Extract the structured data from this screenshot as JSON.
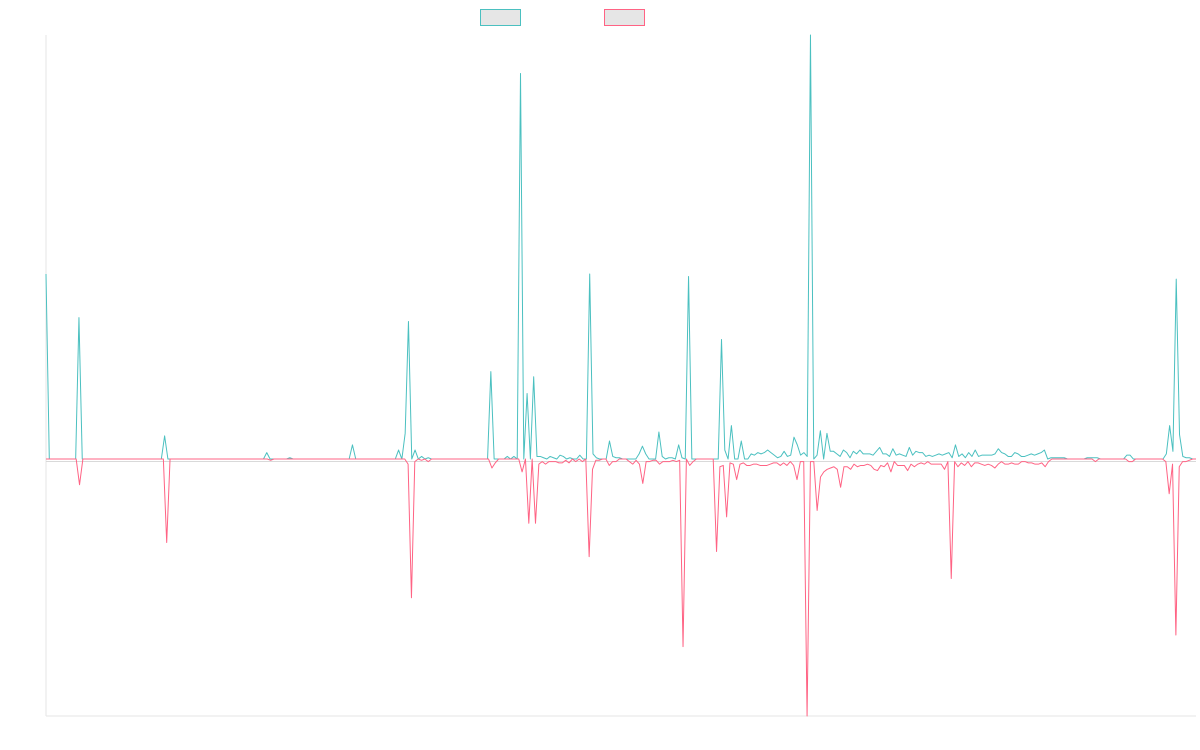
{
  "chart_data": {
    "type": "line",
    "title": "",
    "xlabel": "",
    "ylabel": "",
    "grid": false,
    "legend_position": "top-center",
    "ylim": [
      -100,
      165
    ],
    "series": [
      {
        "name": "",
        "color": "#4bc0c0",
        "values": [
          72,
          0,
          0,
          0,
          0,
          0,
          0,
          0,
          0,
          0,
          55,
          0,
          0,
          0,
          0,
          0,
          0,
          0,
          0,
          0,
          0,
          0,
          0,
          0,
          0,
          0,
          0,
          0,
          0,
          0,
          0,
          0,
          0,
          0,
          0,
          0,
          9,
          0,
          0,
          0,
          0,
          0,
          0,
          0,
          0,
          0,
          0,
          0,
          0,
          0,
          0,
          0,
          0,
          0,
          0,
          0,
          0,
          0,
          0,
          0,
          0,
          0,
          0,
          0,
          0,
          0,
          0,
          2.5,
          0,
          0,
          0,
          0,
          0,
          0,
          0.5,
          0,
          0,
          0,
          0,
          0,
          0,
          0,
          0,
          0,
          0,
          0,
          0,
          0,
          0,
          0,
          0,
          0,
          0,
          5.5,
          0,
          0,
          0,
          0,
          0,
          0,
          0,
          0,
          0,
          0,
          0,
          0,
          0,
          3.5,
          0,
          10,
          53.5,
          0,
          3.5,
          0,
          1,
          0,
          0.5,
          0,
          0,
          0,
          0,
          0,
          0,
          0,
          0,
          0,
          0,
          0,
          0,
          0,
          0,
          0,
          0,
          0,
          0,
          34,
          0,
          0,
          0,
          0,
          1,
          0,
          1,
          0,
          150,
          0,
          25.5,
          0,
          32,
          1,
          1,
          0.5,
          0,
          1,
          0.5,
          0,
          1.5,
          1,
          0,
          0.5,
          0,
          0,
          1.5,
          0,
          0,
          72,
          2,
          0.5,
          0,
          0,
          0,
          7,
          1,
          0.5,
          0.5,
          0,
          0,
          0,
          0,
          0,
          2,
          5,
          2,
          0,
          0,
          0,
          10.5,
          1,
          0,
          0.5,
          0.5,
          0,
          5.5,
          0.5,
          0,
          71,
          0,
          0,
          0,
          0,
          0,
          0,
          0,
          0,
          0,
          46.5,
          3.5,
          0,
          13,
          0,
          0,
          7,
          0,
          0,
          2,
          1.5,
          2.5,
          2,
          2.5,
          3.5,
          2.5,
          1.5,
          0.5,
          1,
          3,
          1,
          1.5,
          8.5,
          5.5,
          1.5,
          2.5,
          1,
          165,
          0,
          1.5,
          11,
          0,
          10,
          3,
          3,
          2,
          1,
          3.5,
          2.5,
          0.5,
          3,
          2,
          3.5,
          2,
          2,
          2,
          1.5,
          3,
          4.5,
          2,
          2,
          1,
          4,
          1.5,
          2,
          1.5,
          1,
          4.5,
          1.5,
          3,
          2.5,
          2.5,
          1,
          1.5,
          1,
          1.5,
          2,
          1.5,
          2,
          2.5,
          0.5,
          5.5,
          1,
          2,
          0.5,
          2.5,
          1,
          3.5,
          1,
          1.5,
          1.5,
          1.5,
          1.5,
          2,
          4,
          2.5,
          2,
          1,
          1,
          2.5,
          2,
          1,
          1,
          1.5,
          2,
          1.5,
          2,
          2.5,
          3.5,
          0,
          0.5,
          0.5,
          0.5,
          0.5,
          0.5,
          0,
          0,
          0,
          0,
          0,
          0,
          0.5,
          0.5,
          0.5,
          0.5,
          0,
          0,
          0,
          0,
          0,
          0,
          0,
          0,
          1.5,
          1.5,
          0,
          0,
          0,
          0,
          0,
          0,
          0,
          0,
          0,
          0,
          2,
          13,
          3,
          70,
          9.5,
          1,
          0.5,
          0.5,
          0,
          0
        ]
      },
      {
        "name": "",
        "color": "#ff6384",
        "values": [
          0,
          0,
          0,
          0,
          0,
          0,
          0,
          0,
          0,
          0,
          -10,
          0,
          0,
          0,
          0,
          0,
          0,
          0,
          0,
          0,
          0,
          0,
          0,
          0,
          0,
          0,
          0,
          0,
          0,
          0,
          0,
          0,
          0,
          0,
          0,
          0,
          -32.5,
          0,
          0,
          0,
          0,
          0,
          0,
          0,
          0,
          0,
          0,
          0,
          0,
          0,
          0,
          0,
          0,
          0,
          0,
          0,
          0,
          0,
          0,
          0,
          0,
          0,
          0,
          0,
          0,
          0,
          0,
          -0.5,
          0,
          0,
          0,
          0,
          0,
          0,
          0,
          0,
          0,
          0,
          0,
          0,
          0,
          0,
          0,
          0,
          0,
          0,
          0,
          0,
          0,
          0,
          0,
          0,
          0,
          0,
          0,
          0,
          0,
          0,
          0,
          0,
          0,
          0,
          0,
          0,
          0,
          0,
          0,
          0,
          -2,
          -54,
          -1,
          0,
          -0.5,
          0,
          -1,
          0,
          0,
          0,
          0,
          0,
          0,
          0,
          0,
          0,
          0,
          0,
          0,
          0,
          0,
          0,
          0,
          0,
          0,
          -3.5,
          -1.5,
          0,
          0,
          0,
          0,
          0,
          0,
          0,
          -5,
          0,
          -25,
          0,
          -25,
          -2,
          -1,
          -2,
          -1,
          -1,
          -1,
          -1.5,
          -1.5,
          -0.5,
          -1.5,
          0,
          -1,
          0,
          -1,
          0,
          -38,
          -4,
          -0.5,
          -0.5,
          0,
          0,
          -2.5,
          -1,
          -1,
          0,
          0,
          0,
          -1,
          -2,
          -0.5,
          -2,
          -9.5,
          -1,
          -1,
          -0.5,
          -0.5,
          -2,
          -1,
          -1,
          -1,
          -0.5,
          -1,
          -0.5,
          -73,
          0,
          -2.5,
          -1,
          0,
          0,
          0,
          0,
          0,
          0,
          -36,
          -3,
          -2.5,
          -22.5,
          -1.5,
          -2,
          -8,
          -2,
          -1.5,
          -2.5,
          -2.5,
          -2,
          -2,
          -2.5,
          -2.5,
          -2.5,
          -2,
          -1.5,
          -1.5,
          -2.5,
          -1.5,
          -2.5,
          -1,
          -2.5,
          -8,
          -1,
          -1,
          -100,
          -1,
          -1,
          -20,
          -7,
          -5,
          -4,
          -3.5,
          -3,
          -4,
          -11,
          -3,
          -3,
          -4,
          -2,
          -3,
          -2.5,
          -2.5,
          -2,
          -2.5,
          -4,
          -4.5,
          -2.5,
          -3,
          -1.5,
          -5,
          -1,
          -2.5,
          -2.5,
          -2.5,
          -4.5,
          -2,
          -3,
          -2,
          -1.5,
          -2,
          -1,
          -2,
          -2,
          -2,
          -2,
          -4,
          -1,
          -46.5,
          -1,
          -3,
          -1.5,
          -2.5,
          -1,
          -3,
          -1.5,
          -1.5,
          -2,
          -2.5,
          -2,
          -2.5,
          -3.5,
          -2,
          -1,
          -2,
          -2,
          -1.5,
          -2,
          -2,
          -1,
          -1,
          -1.5,
          -1.5,
          -2,
          -2,
          -1.5,
          -3,
          -1,
          0,
          0,
          0,
          0,
          0,
          0,
          0,
          0,
          0,
          0,
          0,
          0,
          0,
          -1,
          0,
          0,
          0,
          0,
          0,
          0,
          0,
          0,
          0,
          -1,
          -1,
          0,
          0,
          0,
          0,
          0,
          0,
          0,
          0,
          0,
          -1,
          -13.5,
          -2,
          -68.5,
          -3,
          -1,
          -1,
          -0.5,
          0,
          0
        ]
      }
    ]
  }
}
